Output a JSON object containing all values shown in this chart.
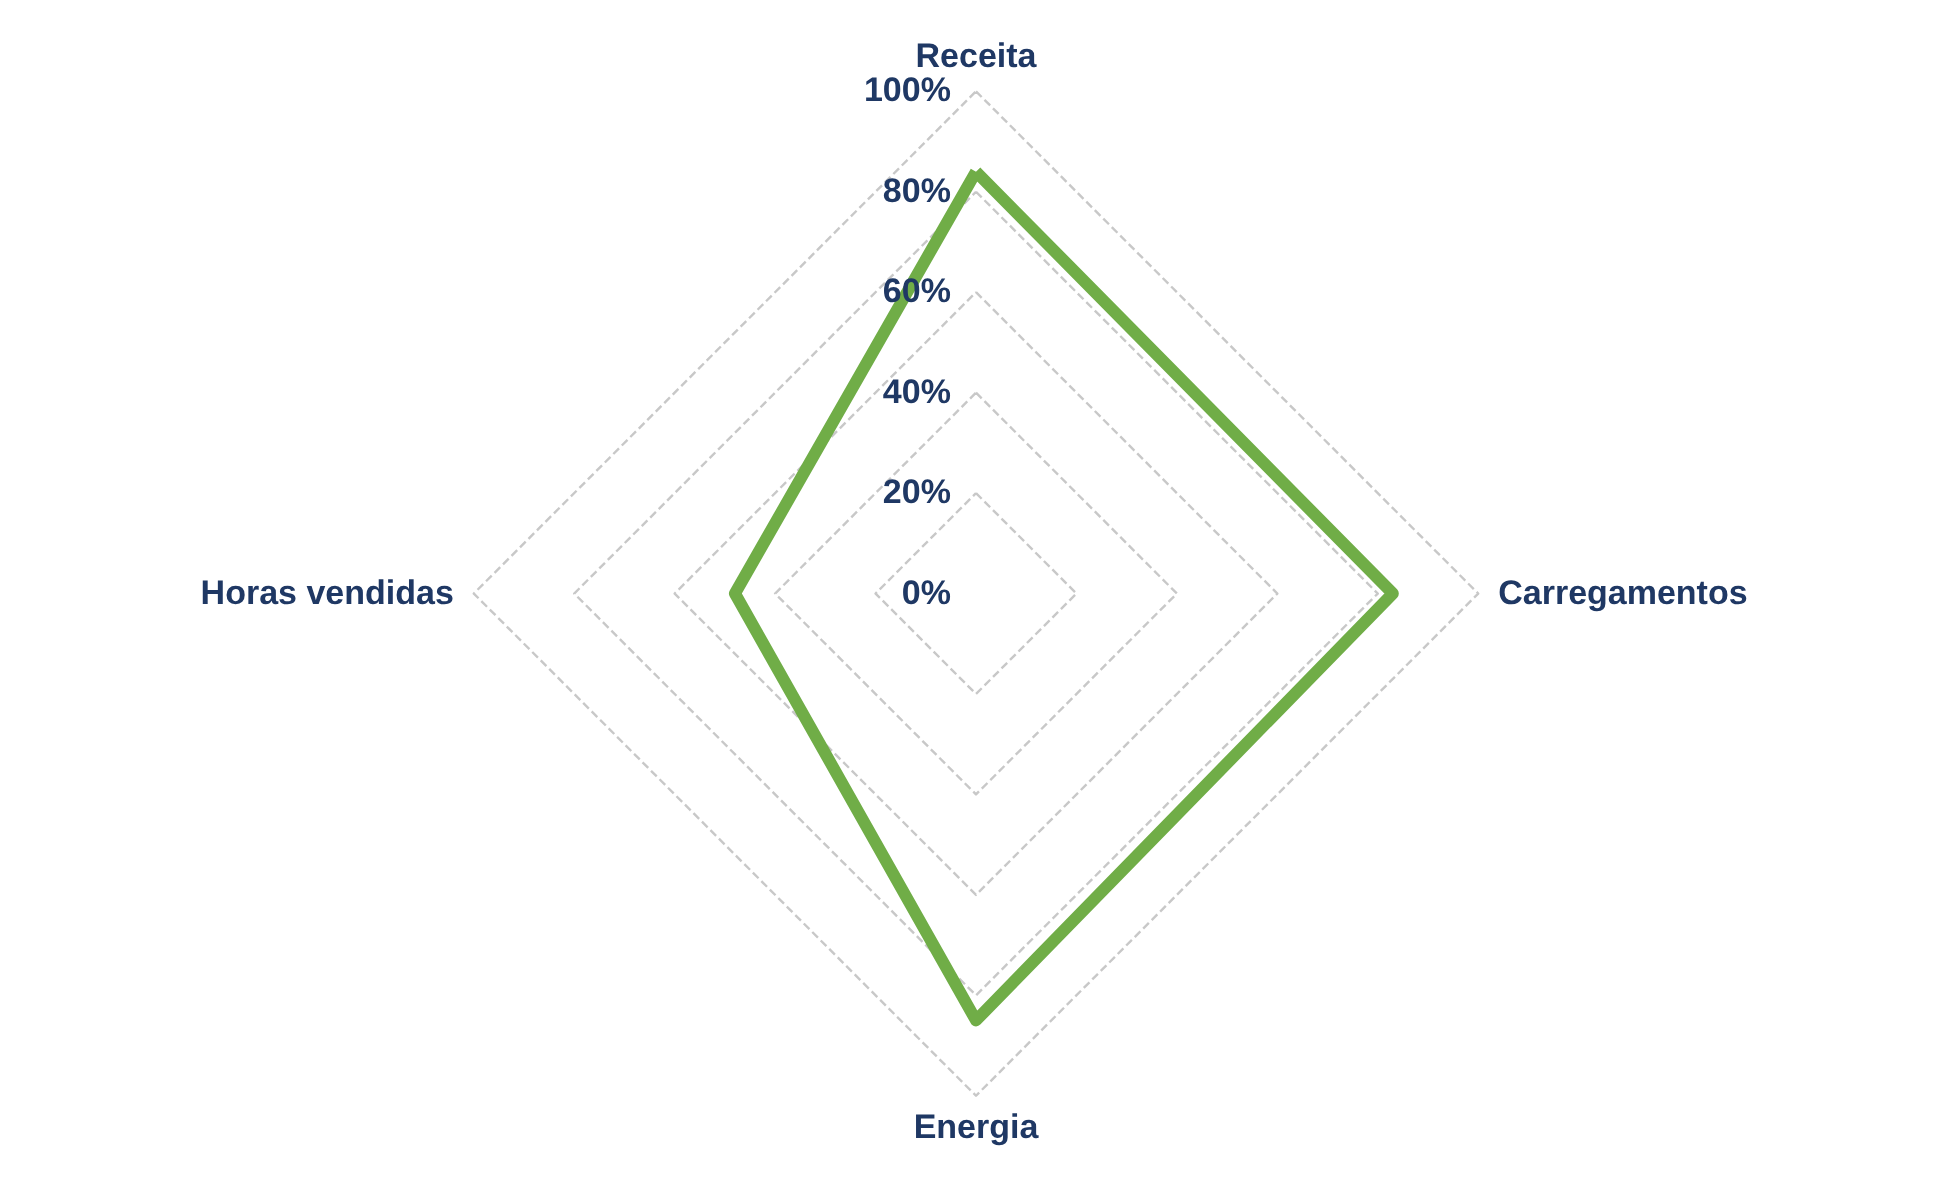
{
  "chart_data": {
    "type": "radar",
    "categories": [
      "Receita",
      "Carregamentos",
      "Energia",
      "Horas vendidas"
    ],
    "series": [
      {
        "color": "#70ad47",
        "values": [
          84,
          83,
          85,
          48
        ]
      }
    ],
    "ylim": [
      0,
      100
    ],
    "yticks": [
      {
        "value": 0,
        "label": "0%"
      },
      {
        "value": 20,
        "label": "20%"
      },
      {
        "value": 40,
        "label": "40%"
      },
      {
        "value": 60,
        "label": "60%"
      },
      {
        "value": 80,
        "label": "80%"
      },
      {
        "value": 100,
        "label": "100%"
      }
    ],
    "grid": true,
    "marker": "none",
    "line_style": "solid"
  }
}
